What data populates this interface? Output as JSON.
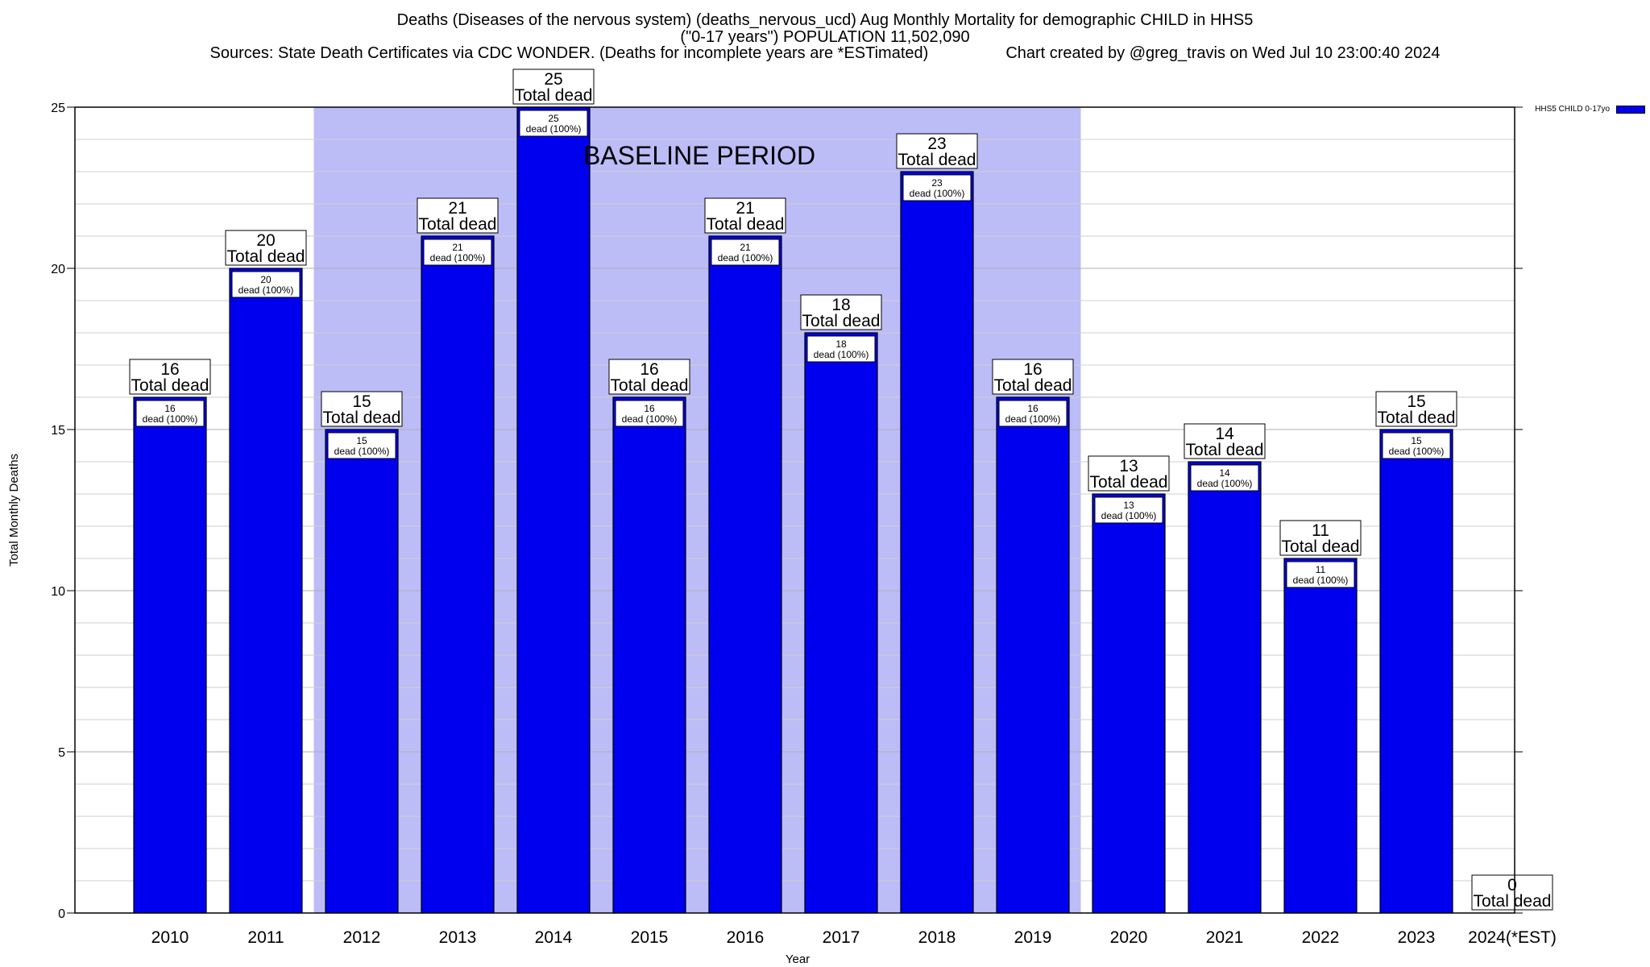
{
  "header": {
    "title_line1": "Deaths (Diseases of the nervous system) (deaths_nervous_ucd) Aug Monthly Mortality for demographic CHILD in HHS5",
    "title_line2": "(\"0-17 years\") POPULATION 11,502,090",
    "sources": "Sources: State Death Certificates via CDC WONDER. (Deaths for incomplete years are *ESTimated)",
    "credit": "Chart created by @greg_travis on Wed Jul 10 23:00:40 2024"
  },
  "chart_data": {
    "type": "bar",
    "xlabel": "Year",
    "ylabel": "Total Monthly Deaths",
    "ylim": [
      0,
      25
    ],
    "yticks": [
      0,
      5,
      10,
      15,
      20,
      25
    ],
    "grid": true,
    "baseline_label": "BASELINE PERIOD",
    "baseline_range": [
      "2012",
      "2019"
    ],
    "legend_position": "top-right",
    "categories": [
      "2010",
      "2011",
      "2012",
      "2013",
      "2014",
      "2015",
      "2016",
      "2017",
      "2018",
      "2019",
      "2020",
      "2021",
      "2022",
      "2023",
      "2024(*EST)"
    ],
    "series": [
      {
        "name": "HHS5 CHILD 0-17yo",
        "values": [
          16,
          20,
          15,
          21,
          25,
          16,
          21,
          18,
          23,
          16,
          13,
          14,
          11,
          15,
          0
        ]
      }
    ],
    "label_top_suffix": "Total dead",
    "label_inner_suffix": "dead (100%)"
  },
  "colors": {
    "bar": "#0000ee",
    "baseline_band": "#bcbcf7",
    "grid": "#cfcfcf",
    "axis": "#000000"
  }
}
